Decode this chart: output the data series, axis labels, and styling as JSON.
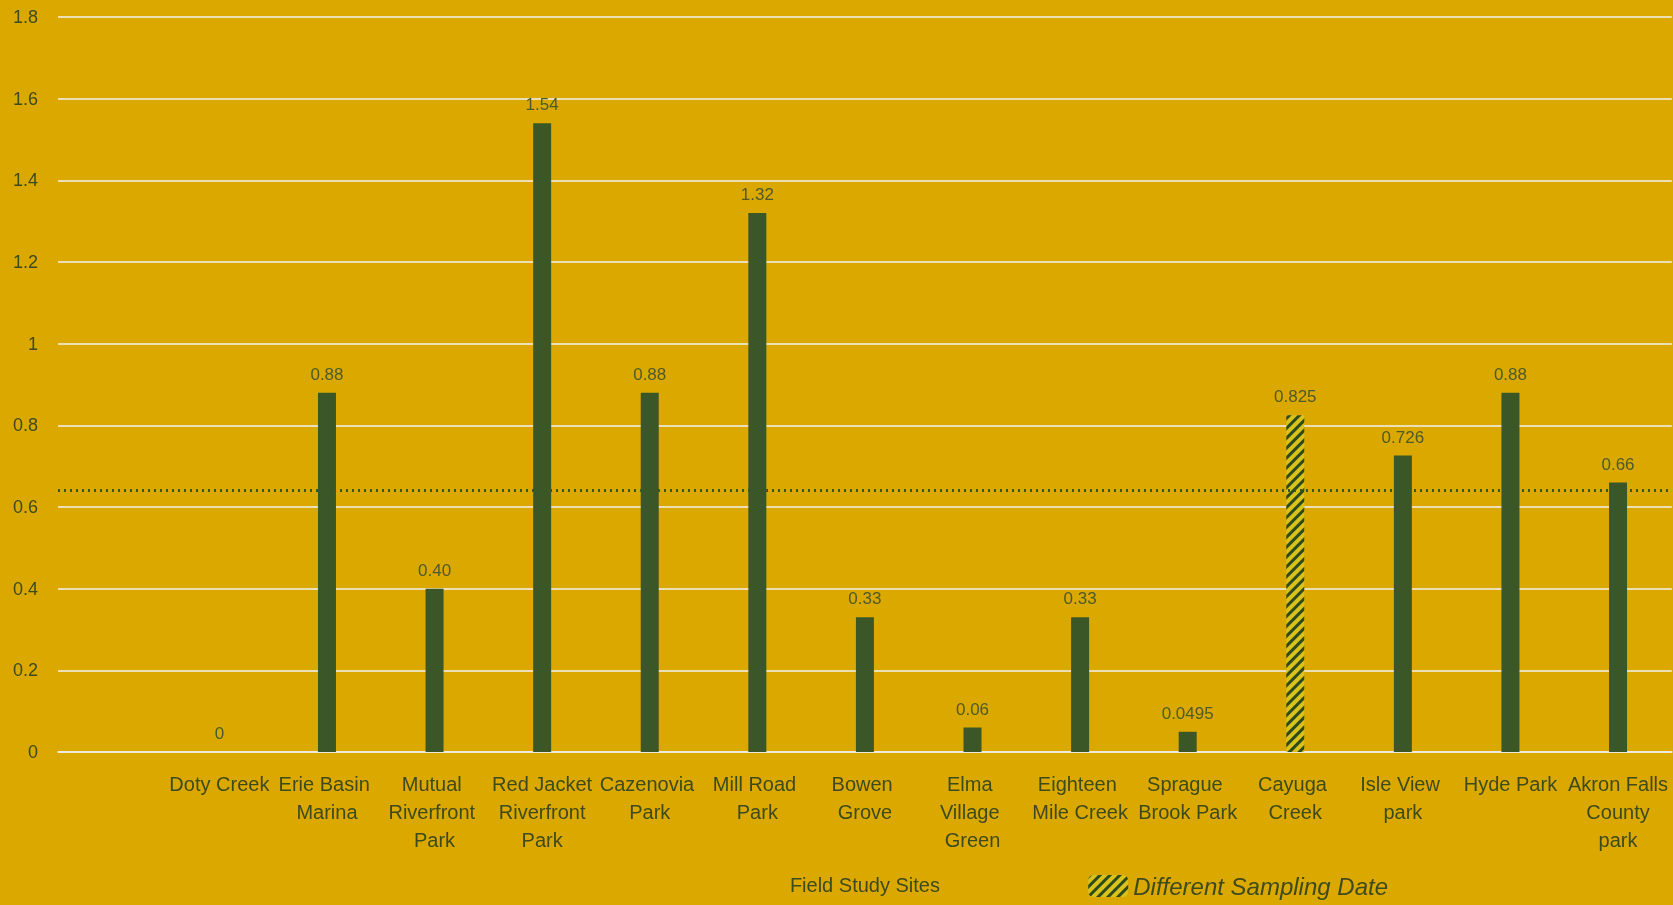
{
  "chart_data": {
    "type": "bar",
    "xlabel": "Field Study Sites",
    "categories": [
      null,
      "Doty Creek",
      "Erie Basin Marina",
      "Mutual Riverfront Park",
      "Red Jacket Riverfront Park",
      "Cazenovia Park",
      "Mill Road Park",
      "Bowen Grove",
      "Elma Village Green",
      "Eighteen Mile Creek",
      "Sprague Brook Park",
      "Cayuga Creek",
      "Isle View park",
      "Hyde Park",
      "Akron Falls County park"
    ],
    "series": [
      {
        "color": "#3b5727",
        "values": [
          null,
          0,
          0.88,
          0.4,
          1.54,
          0.88,
          1.32,
          0.33,
          0.06,
          0.33,
          0.0495,
          null,
          0.726,
          0.88,
          0.66
        ],
        "value_labels": [
          null,
          "0",
          "0.88",
          "0.40",
          "1.54",
          "0.88",
          "1.32",
          "0.33",
          "0.06",
          "0.33",
          "0.0495",
          null,
          "0.726",
          "0.88",
          "0.66"
        ]
      },
      {
        "name": "Different Sampling Date",
        "color": "#d9c21a",
        "values": [
          null,
          null,
          null,
          null,
          null,
          null,
          null,
          null,
          null,
          null,
          null,
          0.825,
          null,
          null,
          null
        ],
        "value_labels": [
          null,
          null,
          null,
          null,
          null,
          null,
          null,
          null,
          null,
          null,
          null,
          "0.825",
          null,
          null,
          null
        ]
      }
    ],
    "stacked": true,
    "ylim": [
      0,
      1.8
    ],
    "yticks": [
      0,
      0.2,
      0.4,
      0.6,
      0.8,
      1,
      1.2,
      1.4,
      1.6,
      1.8
    ],
    "grid": "y",
    "ref_lines": [
      {
        "axis": "y",
        "value": 0.635,
        "color": "#3b5727",
        "line_style": "dotted"
      }
    ],
    "legend": "bottom right"
  }
}
